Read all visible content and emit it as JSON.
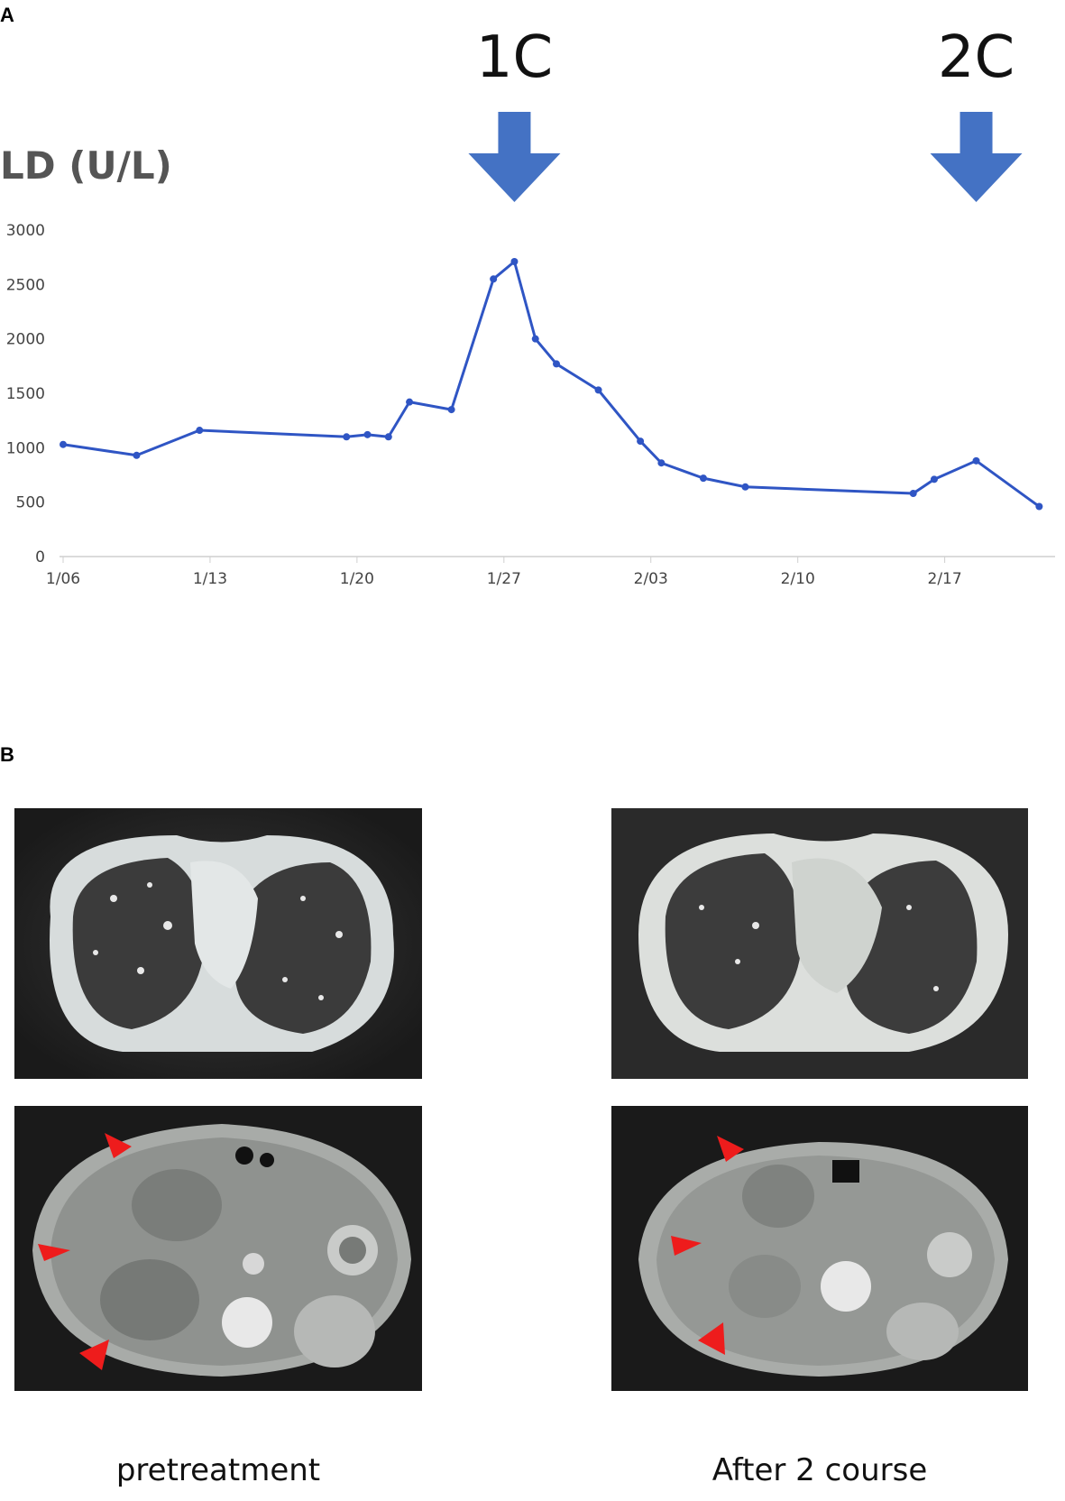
{
  "panel_a_label": "A",
  "panel_b_label": "B",
  "chart_data": {
    "type": "line",
    "ylabel": "LD (U/L)",
    "y_ticks": [
      "0",
      "500",
      "1000",
      "1500",
      "2000",
      "2500",
      "3000"
    ],
    "ylim": [
      0,
      3000
    ],
    "x_tick_labels": [
      "1/06",
      "1/13",
      "1/20",
      "1/27",
      "2/03",
      "2/10",
      "2/17"
    ],
    "x_tick_days": [
      0,
      7,
      14,
      21,
      28,
      35,
      42
    ],
    "x_range_days": [
      0,
      47
    ],
    "grid": false,
    "series": [
      {
        "color": "#2f55c4",
        "x_days": [
          0,
          3.5,
          6.5,
          13.5,
          14.5,
          15.5,
          16.5,
          18.5,
          20.5,
          21.5,
          22.5,
          23.5,
          25.5,
          27.5,
          28.5,
          30.5,
          32.5,
          40.5,
          41.5,
          43.5,
          46.5
        ],
        "values": [
          1030,
          930,
          1160,
          1100,
          1120,
          1100,
          1420,
          1350,
          2550,
          2710,
          2000,
          1770,
          1530,
          1060,
          860,
          720,
          640,
          580,
          710,
          880,
          460
        ]
      }
    ],
    "annotations": [
      {
        "text": "1C",
        "x_day": 21.5
      },
      {
        "text": "2C",
        "x_day": 43.5
      }
    ],
    "annotation_color": "#4472c4"
  },
  "ct_images": {
    "top_left": {
      "label": "chest-ct-pretreatment"
    },
    "top_right": {
      "label": "chest-ct-after"
    },
    "bottom_left": {
      "label": "abdomen-ct-pretreatment"
    },
    "bottom_right": {
      "label": "abdomen-ct-after"
    }
  },
  "captions": {
    "left": "pretreatment",
    "right": "After 2 course"
  }
}
